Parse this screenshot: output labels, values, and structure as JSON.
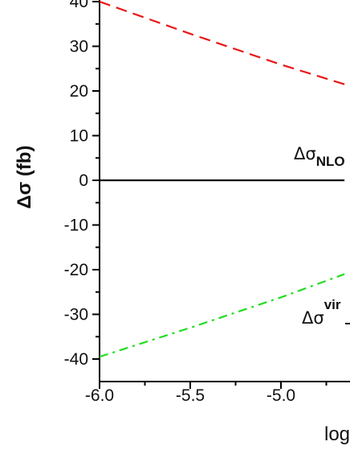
{
  "chart_data": {
    "type": "line",
    "ylabel": "Δσ (fb)",
    "xlabel_fragment": "log",
    "xlim": [
      -6.0,
      -4.7
    ],
    "ylim": [
      -42,
      42
    ],
    "x_ticks": [
      "-6.0",
      "-5.5",
      "-5.0"
    ],
    "y_ticks": [
      "40",
      "30",
      "20",
      "10",
      "0",
      "-10",
      "-20",
      "-30",
      "-40"
    ],
    "grid": false,
    "series": [
      {
        "line_style": "dashed",
        "color": "#e81818",
        "x": [
          -6.0,
          -5.5,
          -5.0,
          -4.65
        ],
        "y": [
          40.0,
          32.8,
          25.9,
          21.5
        ]
      },
      {
        "line_style": "solid",
        "color": "#000000",
        "x": [
          -6.0,
          -5.5,
          -5.0,
          -4.65
        ],
        "y": [
          0.0,
          0.0,
          0.0,
          0.0
        ]
      },
      {
        "line_style": "dash-dot",
        "color": "#22dd22",
        "x": [
          -6.0,
          -5.5,
          -5.0,
          -4.65
        ],
        "y": [
          -39.5,
          -33.0,
          -26.2,
          -21.0
        ]
      }
    ],
    "annotations": [
      {
        "main": "Δσ",
        "sub": "NLO"
      },
      {
        "main": "Δσ",
        "sup": "vir"
      }
    ]
  }
}
